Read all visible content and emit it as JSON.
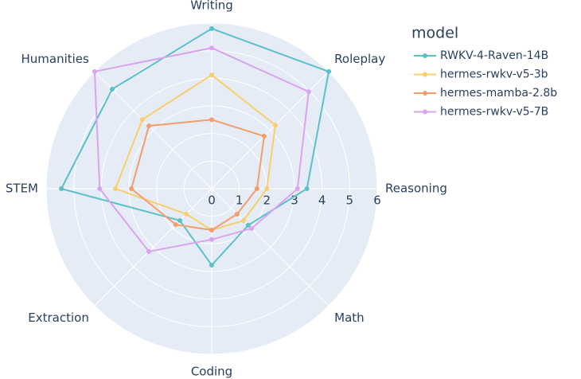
{
  "chart_data": {
    "type": "radar",
    "categories": [
      "Writing",
      "Roleplay",
      "Reasoning",
      "Math",
      "Coding",
      "Extraction",
      "STEM",
      "Humanities"
    ],
    "series": [
      {
        "name": "RWKV-4-Raven-14B",
        "color": "#5bc0c8",
        "values": [
          5.8,
          6.0,
          3.45,
          1.87,
          2.77,
          1.63,
          5.45,
          5.1
        ]
      },
      {
        "name": "hermes-rwkv-v5-3b",
        "color": "#f7cf6b",
        "values": [
          4.12,
          3.26,
          2.0,
          1.63,
          1.5,
          1.3,
          3.49,
          3.55
        ]
      },
      {
        "name": "hermes-mamba-2.8b",
        "color": "#f59c6c",
        "values": [
          2.5,
          2.69,
          1.64,
          1.3,
          1.5,
          1.84,
          2.91,
          3.22
        ]
      },
      {
        "name": "hermes-rwkv-v5-7B",
        "color": "#d9a3f0",
        "values": [
          5.1,
          4.97,
          3.11,
          2.04,
          1.84,
          3.22,
          4.06,
          6.0
        ]
      }
    ],
    "legend_title": "model",
    "rlim": [
      0,
      6
    ],
    "rticks": [
      0,
      1,
      2,
      3,
      4,
      5,
      6
    ],
    "grid": true,
    "legend": "right"
  }
}
